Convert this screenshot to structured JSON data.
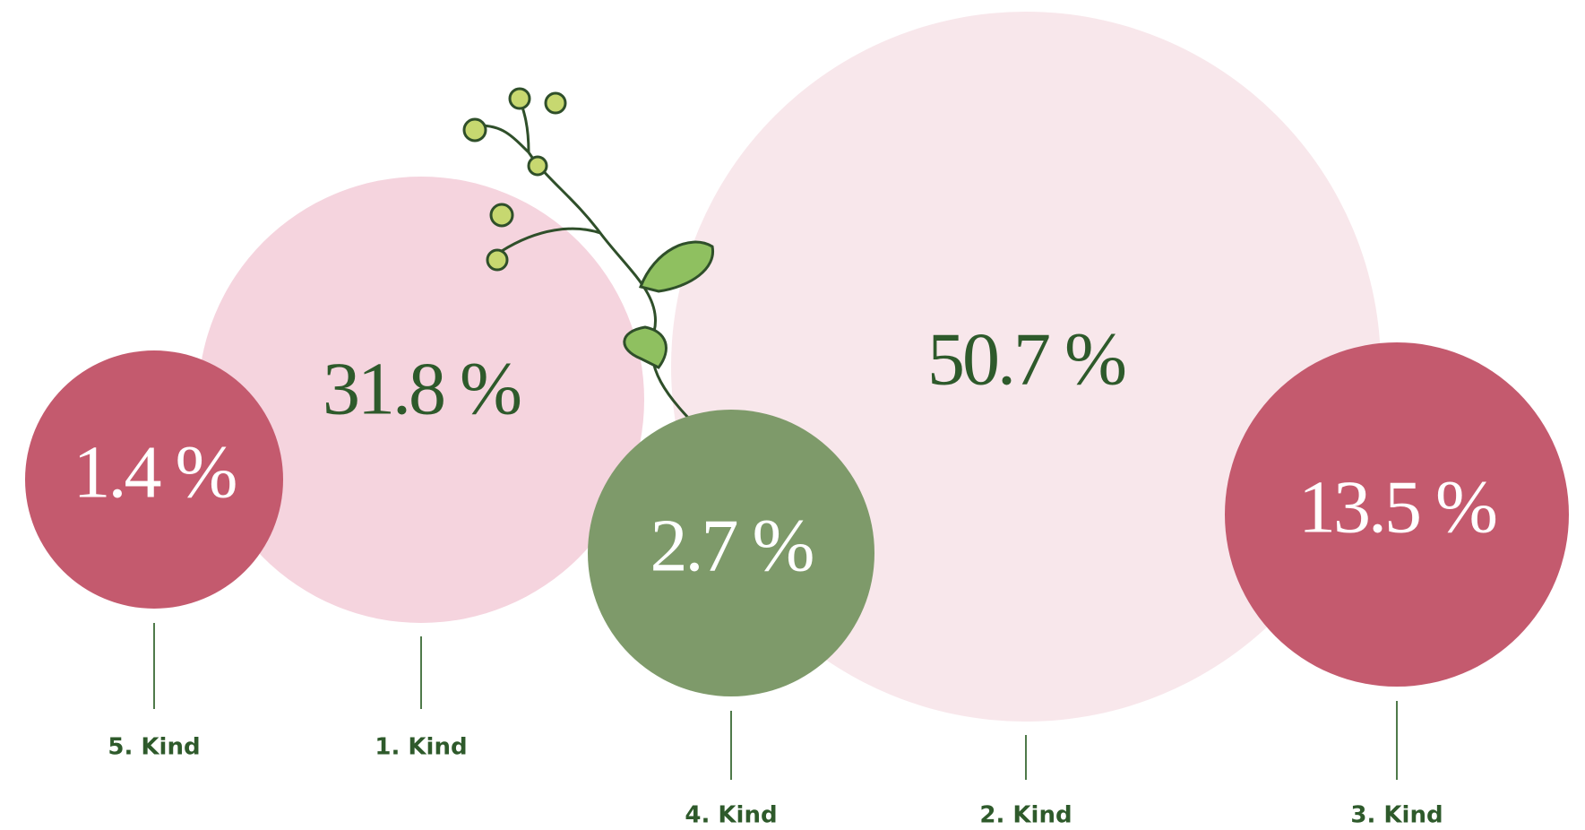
{
  "chart_data": {
    "type": "bubble",
    "categories": [
      "1. Kind",
      "2. Kind",
      "3. Kind",
      "4. Kind",
      "5. Kind"
    ],
    "values": [
      31.8,
      50.7,
      13.5,
      2.7,
      1.4
    ],
    "value_labels": [
      "31.8 %",
      "50.7 %",
      "13.5 %",
      "2.7 %",
      "1.4 %"
    ],
    "colors": [
      "#f5d4de",
      "#f8e7eb",
      "#c45a6e",
      "#7e9a6a",
      "#c45a6e"
    ],
    "label_colors": [
      "#2e5a2b",
      "#2e5a2b",
      "#ffffff",
      "#ffffff",
      "#ffffff"
    ]
  }
}
